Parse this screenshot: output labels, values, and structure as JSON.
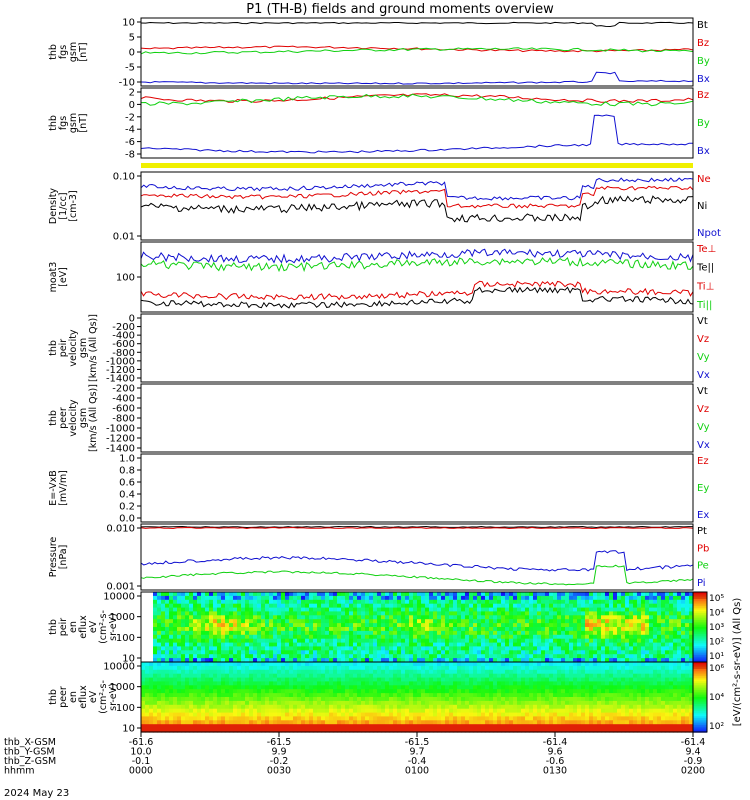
{
  "title": "P1 (TH-B) fields and ground moments overview",
  "date_label": "2024 May 23",
  "colors": {
    "black": "#000000",
    "red": "#e00000",
    "green": "#10d010",
    "blue": "#1010d0",
    "yellow": "#f0f000"
  },
  "chart_data": [
    {
      "id": "p1",
      "type": "line",
      "ylabel": [
        "thb",
        "fgs",
        "gsm",
        "[nT]"
      ],
      "yticks": [
        "10",
        "5",
        "0",
        "-5",
        "-10"
      ],
      "ylim": [
        -12,
        12
      ],
      "legend": [
        {
          "label": "Bt",
          "color": "black"
        },
        {
          "label": "Bz",
          "color": "red"
        },
        {
          "label": "By",
          "color": "green"
        },
        {
          "label": "Bx",
          "color": "blue"
        }
      ]
    },
    {
      "id": "p2",
      "type": "line",
      "ylabel": [
        "thb",
        "fgs",
        "gsm",
        "[nT]"
      ],
      "yticks": [
        "2",
        "0",
        "-2",
        "-4",
        "-6",
        "-8"
      ],
      "ylim": [
        -9.5,
        2.5
      ],
      "legend": [
        {
          "label": "Bz",
          "color": "red"
        },
        {
          "label": "By",
          "color": "green"
        },
        {
          "label": "Bx",
          "color": "blue"
        }
      ]
    },
    {
      "id": "p3",
      "type": "line",
      "ylabel": [
        "Density",
        "[1/cc]",
        "[cm-3]"
      ],
      "yticks": [
        "0.10",
        "0.01"
      ],
      "scale": "log",
      "legend": [
        {
          "label": "Ne",
          "color": "red"
        },
        {
          "label": "Ni",
          "color": "black"
        },
        {
          "label": "Npot",
          "color": "blue"
        }
      ]
    },
    {
      "id": "p4",
      "type": "line",
      "ylabel": [
        "moat3",
        "[eV]"
      ],
      "yticks": [
        "100"
      ],
      "scale": "log",
      "legend": [
        {
          "label": "Te⊥",
          "color": "red"
        },
        {
          "label": "Te||",
          "color": "black"
        },
        {
          "label": "Ti⊥",
          "color": "red"
        },
        {
          "label": "Ti||",
          "color": "green"
        }
      ]
    },
    {
      "id": "p5",
      "type": "line",
      "ylabel": [
        "thb",
        "peir",
        "velocity",
        "gsm",
        "[km/s (All Qs)]"
      ],
      "yticks": [
        "0",
        "-200",
        "-400",
        "-600",
        "-800",
        "-1000",
        "-1200",
        "-1400"
      ],
      "ylim": [
        -1400,
        0
      ],
      "legend": [
        {
          "label": "Vt",
          "color": "black"
        },
        {
          "label": "Vz",
          "color": "red"
        },
        {
          "label": "Vy",
          "color": "green"
        },
        {
          "label": "Vx",
          "color": "blue"
        }
      ]
    },
    {
      "id": "p6",
      "type": "line",
      "ylabel": [
        "thb",
        "peer",
        "velocity",
        "gsm",
        "[km/s (All Qs)]"
      ],
      "yticks": [
        "-200",
        "-400",
        "-600",
        "-800",
        "-1000",
        "-1200",
        "-1400"
      ],
      "ylim": [
        -1400,
        0
      ],
      "legend": [
        {
          "label": "Vt",
          "color": "black"
        },
        {
          "label": "Vz",
          "color": "red"
        },
        {
          "label": "Vy",
          "color": "green"
        },
        {
          "label": "Vx",
          "color": "blue"
        }
      ]
    },
    {
      "id": "p7",
      "type": "line",
      "ylabel": [
        "E=-VxB",
        "[mV/m]"
      ],
      "yticks": [
        "1.0",
        "0.8",
        "0.6",
        "0.4",
        "0.2",
        "0.0"
      ],
      "ylim": [
        0,
        1
      ],
      "legend": [
        {
          "label": "Ez",
          "color": "red"
        },
        {
          "label": "Ey",
          "color": "green"
        },
        {
          "label": "Ex",
          "color": "blue"
        }
      ]
    },
    {
      "id": "p8",
      "type": "line",
      "ylabel": [
        "Pressure",
        "[nPa]"
      ],
      "yticks": [
        "0.010",
        "0.001"
      ],
      "scale": "log",
      "legend": [
        {
          "label": "Pt",
          "color": "black"
        },
        {
          "label": "Pb",
          "color": "red"
        },
        {
          "label": "Pe",
          "color": "green"
        },
        {
          "label": "Pi",
          "color": "blue"
        }
      ]
    },
    {
      "id": "p9",
      "type": "heatmap",
      "ylabel": [
        "thb",
        "peir",
        "en",
        "eflux",
        "eV",
        "(cm²-s-",
        "sr-eV)"
      ],
      "yticks": [
        "10000",
        "1000",
        "100",
        "10"
      ]
    },
    {
      "id": "p10",
      "type": "heatmap",
      "ylabel": [
        "thb",
        "peer",
        "en",
        "eflux",
        "eV",
        "(cm²-s-",
        "sr-eV)"
      ],
      "yticks": [
        "10000",
        "1000",
        "100",
        "10"
      ]
    }
  ],
  "colorbar": {
    "label": "[eV/(cm²-s-sr-eV)] (All Qs)",
    "ticks_top": [
      "10⁵",
      "10⁴",
      "10³",
      "10²",
      "10¹"
    ],
    "ticks_bottom": [
      "10⁶",
      "10⁴",
      "10²"
    ]
  },
  "xaxis": {
    "rows": [
      {
        "label": "thb_X-GSM",
        "values": [
          "-61.6",
          "-61.5",
          "-61.5",
          "-61.4",
          "-61.4"
        ]
      },
      {
        "label": "thb_Y-GSM",
        "values": [
          "10.0",
          "9.9",
          "9.7",
          "9.6",
          "9.4"
        ]
      },
      {
        "label": "thb_Z-GSM",
        "values": [
          "-0.1",
          "-0.2",
          "-0.4",
          "-0.6",
          "-0.9"
        ]
      },
      {
        "label": "hhmm",
        "values": [
          "0000",
          "0030",
          "0100",
          "0130",
          "0200"
        ]
      }
    ]
  }
}
